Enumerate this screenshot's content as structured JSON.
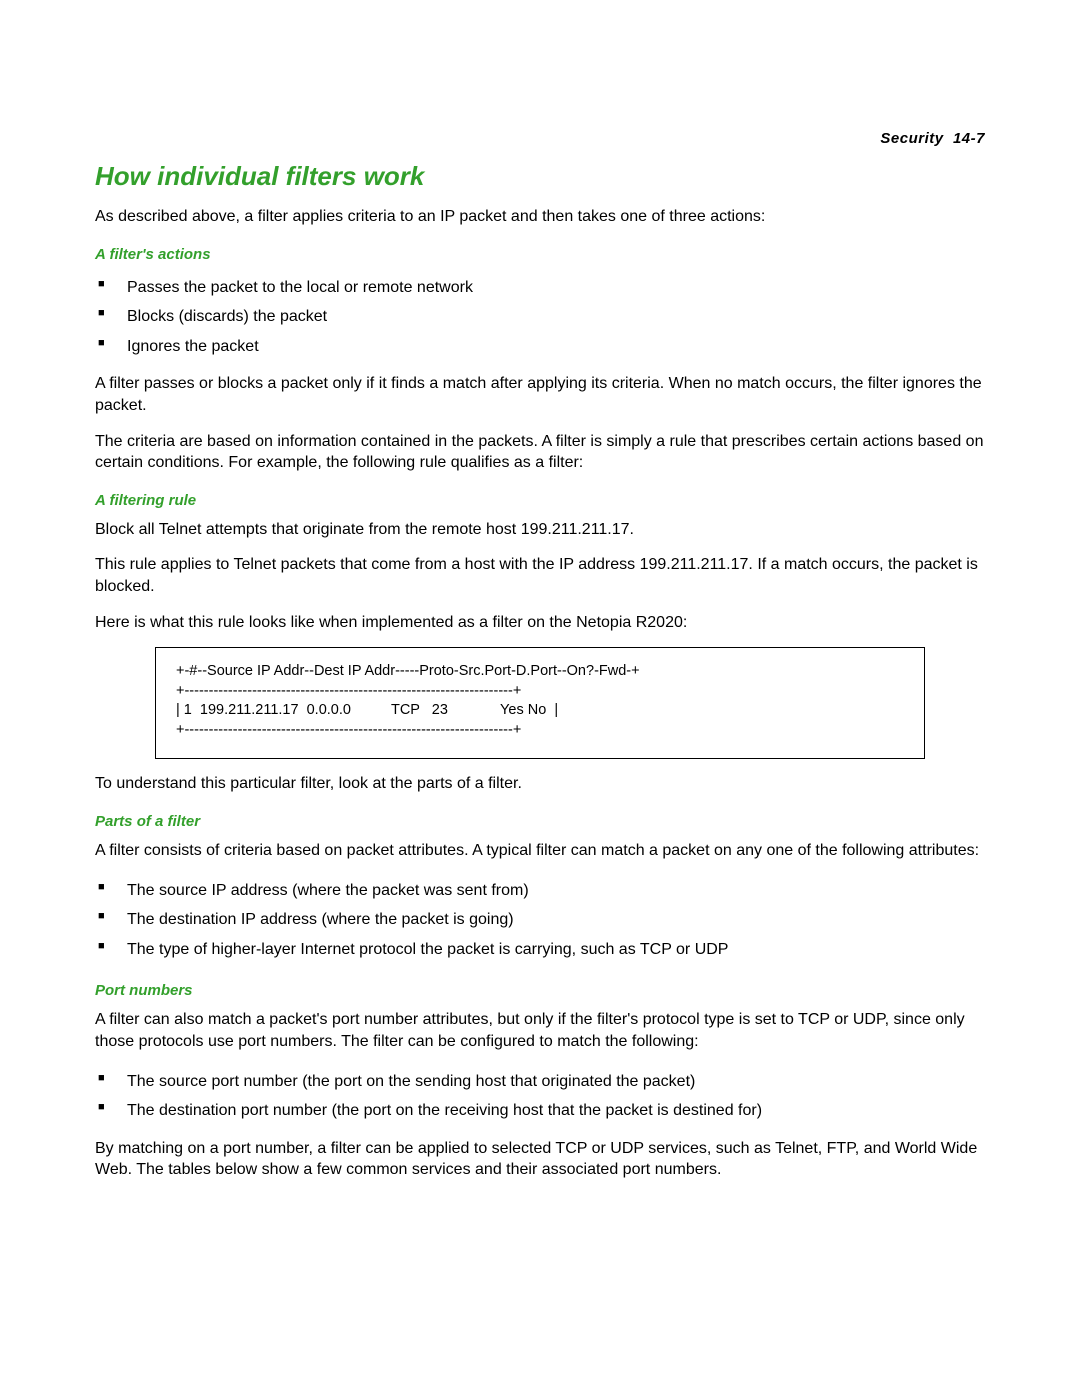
{
  "header": {
    "section": "Security",
    "page_ref": "14-7"
  },
  "title": "How individual filters work",
  "intro": "As described above, a filter applies criteria to an IP packet and then takes one of three actions:",
  "actions": {
    "heading": "A filter's actions",
    "items": [
      "Passes the packet to the local or remote network",
      "Blocks (discards) the packet",
      "Ignores the packet"
    ],
    "para1": "A filter passes or blocks a packet only if it finds a match after applying its criteria. When no match occurs, the filter ignores the packet.",
    "para2": "The criteria are based on information contained in the packets. A filter is simply a rule that prescribes certain actions based on certain conditions. For example, the following rule qualifies as a filter:"
  },
  "rule": {
    "heading": "A filtering rule",
    "para1": "Block all Telnet attempts that originate from the remote host 199.211.211.17.",
    "para2": "This rule applies to Telnet packets that come from a host with the IP address 199.211.211.17. If a match occurs, the packet is blocked.",
    "para3": "Here is what this rule looks like when implemented as a filter on the Netopia R2020:"
  },
  "filter_box": {
    "line1": "+-#--Source IP Addr--Dest IP Addr-----Proto-Src.Port-D.Port--On?-Fwd-+",
    "line2": "+--------------------------------------------------------------------+",
    "line3": "| 1  199.211.211.17  0.0.0.0          TCP   23             Yes No  |",
    "line4": "+--------------------------------------------------------------------+"
  },
  "after_box": "To understand this particular filter, look at the parts of a filter.",
  "parts": {
    "heading": "Parts of a filter",
    "para": "A filter consists of criteria based on packet attributes. A typical filter can match a packet on any one of the following attributes:",
    "items": [
      "The source IP address (where the packet was sent from)",
      "The destination IP address (where the packet is going)",
      "The type of higher-layer Internet protocol the packet is carrying, such as TCP or UDP"
    ]
  },
  "ports": {
    "heading": "Port numbers",
    "para1": "A filter can also match a packet's port number attributes, but only if the filter's protocol type is set to TCP or UDP, since only those protocols use port numbers. The filter can be configured to match the following:",
    "items": [
      "The source port number (the port on the sending host that originated the packet)",
      "The destination port number (the port on the receiving host that the packet is destined for)"
    ],
    "para2": "By matching on a port number, a filter can be applied to selected TCP or UDP services, such as Telnet, FTP, and World Wide Web. The tables below show a few common services and their associated port numbers."
  },
  "colors": {
    "heading_green": "#33a02c",
    "text": "#000000",
    "background": "#ffffff"
  },
  "typography": {
    "title_fontsize": 26,
    "subheading_fontsize": 15,
    "body_fontsize": 16,
    "header_fontsize": 15,
    "box_fontsize": 14.5
  }
}
